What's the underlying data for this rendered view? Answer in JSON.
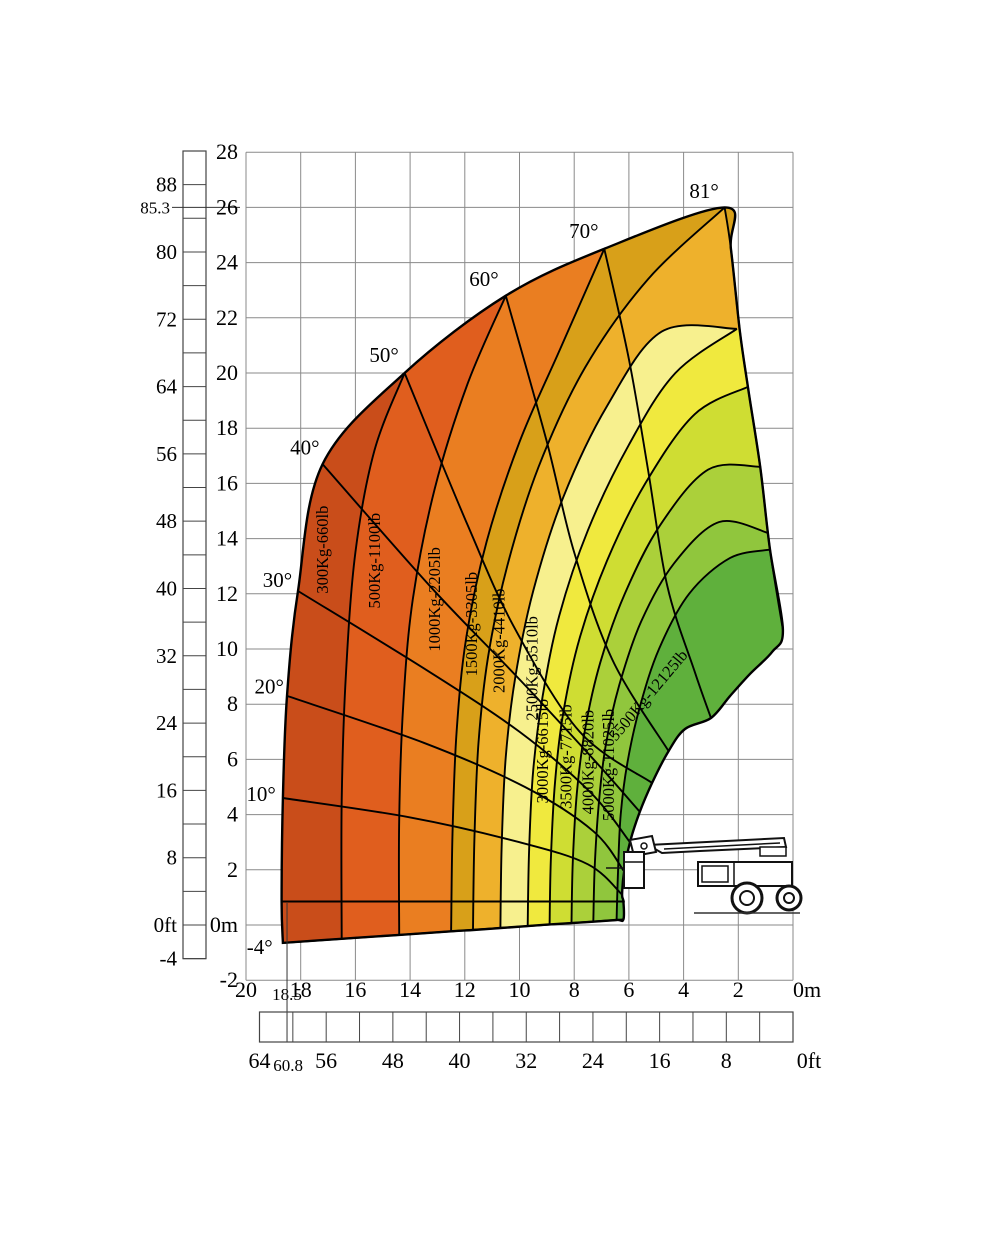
{
  "page": {
    "background": "#ffffff"
  },
  "chart_data": {
    "type": "area",
    "title": "",
    "description": "Aerial platform / crane working range and load capacity chart. Horizontal axis: outreach (m top scale, ft bottom scale, zero at right). Vertical axis: height (m inner scale, ft outer ruler). Fan-shaped envelope divided into capacity zones by boom angle lines.",
    "grid": {
      "on": true,
      "step_m": 2,
      "x_range_m": [
        0,
        20
      ],
      "y_range_m": [
        -2,
        28
      ]
    },
    "axes": {
      "y_m": {
        "ticks": [
          {
            "v": 28,
            "label": "28"
          },
          {
            "v": 26,
            "label": "26"
          },
          {
            "v": 24,
            "label": "24"
          },
          {
            "v": 22,
            "label": "22"
          },
          {
            "v": 20,
            "label": "20"
          },
          {
            "v": 18,
            "label": "18"
          },
          {
            "v": 16,
            "label": "16"
          },
          {
            "v": 14,
            "label": "14"
          },
          {
            "v": 12,
            "label": "12"
          },
          {
            "v": 10,
            "label": "10"
          },
          {
            "v": 8,
            "label": "8"
          },
          {
            "v": 6,
            "label": "6"
          },
          {
            "v": 4,
            "label": "4"
          },
          {
            "v": 2,
            "label": "2"
          },
          {
            "v": 0,
            "label": "0m"
          },
          {
            "v": -2,
            "label": "-2"
          }
        ]
      },
      "y_ft": {
        "ticks": [
          {
            "v": 88,
            "label": "88"
          },
          {
            "v": 80,
            "label": "80"
          },
          {
            "v": 72,
            "label": "72"
          },
          {
            "v": 64,
            "label": "64"
          },
          {
            "v": 56,
            "label": "56"
          },
          {
            "v": 48,
            "label": "48"
          },
          {
            "v": 40,
            "label": "40"
          },
          {
            "v": 32,
            "label": "32"
          },
          {
            "v": 24,
            "label": "24"
          },
          {
            "v": 16,
            "label": "16"
          },
          {
            "v": 8,
            "label": "8"
          },
          {
            "v": 0,
            "label": "0ft"
          },
          {
            "v": -4,
            "label": "-4"
          }
        ],
        "special": {
          "v": 85.3,
          "label": "85.3"
        }
      },
      "x_m": {
        "ticks": [
          {
            "v": 20,
            "label": "20"
          },
          {
            "v": 18,
            "label": "18"
          },
          {
            "v": 16,
            "label": "16"
          },
          {
            "v": 14,
            "label": "14"
          },
          {
            "v": 12,
            "label": "12"
          },
          {
            "v": 10,
            "label": "10"
          },
          {
            "v": 8,
            "label": "8"
          },
          {
            "v": 6,
            "label": "6"
          },
          {
            "v": 4,
            "label": "4"
          },
          {
            "v": 2,
            "label": "2"
          },
          {
            "v": 0,
            "label": "0m"
          }
        ],
        "special": {
          "v": 18.5,
          "label": "18.5"
        }
      },
      "x_ft": {
        "ticks": [
          {
            "v": 64,
            "label": "64"
          },
          {
            "v": 56,
            "label": "56"
          },
          {
            "v": 48,
            "label": "48"
          },
          {
            "v": 40,
            "label": "40"
          },
          {
            "v": 32,
            "label": "32"
          },
          {
            "v": 24,
            "label": "24"
          },
          {
            "v": 16,
            "label": "16"
          },
          {
            "v": 8,
            "label": "8"
          },
          {
            "v": 0,
            "label": "0ft"
          }
        ],
        "special": {
          "v": 60.8,
          "label": "60.8"
        }
      }
    },
    "markers": {
      "max_height_ft": "85.3",
      "max_reach_m": "18.5",
      "max_reach_ft": "60.8"
    },
    "envelope": {
      "outer": [
        [
          18.65,
          -0.65
        ],
        [
          18.7,
          0.85
        ],
        [
          18.65,
          4.6
        ],
        [
          18.5,
          8.3
        ],
        [
          18.1,
          12.1
        ],
        [
          17.2,
          16.7
        ],
        [
          14.2,
          20.0
        ],
        [
          10.5,
          22.8
        ],
        [
          6.9,
          24.5
        ],
        [
          2.5,
          26.0
        ]
      ],
      "right_edge": [
        [
          2.27,
          24.5
        ],
        [
          1.94,
          21.5
        ],
        [
          1.65,
          19.5
        ],
        [
          1.2,
          16.6
        ],
        [
          0.84,
          13.6
        ],
        [
          0.37,
          10.7
        ]
      ],
      "inner_arc": [
        [
          0.76,
          9.9
        ],
        [
          1.57,
          9.1
        ],
        [
          2.3,
          8.3
        ],
        [
          3.0,
          7.5
        ],
        [
          3.95,
          7.1
        ],
        [
          4.55,
          6.3
        ],
        [
          5.15,
          5.15
        ],
        [
          5.6,
          4.1
        ],
        [
          5.96,
          3.0
        ],
        [
          6.18,
          1.9
        ],
        [
          6.25,
          1.1
        ],
        [
          6.2,
          0.85
        ],
        [
          6.2,
          0.2
        ]
      ],
      "bottom_edge": [
        [
          6.45,
          0.18
        ],
        [
          7.3,
          0.12
        ],
        [
          8.1,
          0.07
        ],
        [
          8.9,
          0.02
        ],
        [
          9.7,
          -0.04
        ],
        [
          10.7,
          -0.11
        ],
        [
          11.7,
          -0.18
        ],
        [
          12.5,
          -0.23
        ],
        [
          14.4,
          -0.36
        ],
        [
          16.5,
          -0.5
        ]
      ]
    },
    "angle_lines": [
      {
        "label": "-4°",
        "points": [
          [
            18.65,
            -0.65
          ],
          [
            6.2,
            0.2
          ]
        ],
        "label_pos": [
          19.5,
          -0.8
        ]
      },
      {
        "label": "",
        "points": [
          [
            18.7,
            0.85
          ],
          [
            6.15,
            0.85
          ]
        ],
        "label_pos": null
      },
      {
        "label": "10°",
        "points": [
          [
            18.65,
            4.6
          ],
          [
            14.0,
            3.9
          ],
          [
            10.0,
            3.0
          ],
          [
            7.5,
            2.2
          ],
          [
            6.25,
            1.1
          ]
        ],
        "label_pos": [
          19.45,
          4.75
        ]
      },
      {
        "label": "20°",
        "points": [
          [
            18.5,
            8.3
          ],
          [
            13.5,
            6.6
          ],
          [
            9.8,
            5.0
          ],
          [
            7.3,
            3.4
          ],
          [
            6.18,
            1.95
          ]
        ],
        "label_pos": [
          19.15,
          8.65
        ]
      },
      {
        "label": "30°",
        "points": [
          [
            18.1,
            12.1
          ],
          [
            13.5,
            9.3
          ],
          [
            10.0,
            7.0
          ],
          [
            7.4,
            4.8
          ],
          [
            5.96,
            3.0
          ]
        ],
        "label_pos": [
          18.85,
          12.5
        ]
      },
      {
        "label": "40°",
        "points": [
          [
            17.2,
            16.7
          ],
          [
            13.2,
            12.2
          ],
          [
            10.0,
            8.9
          ],
          [
            7.2,
            5.9
          ],
          [
            5.6,
            4.1
          ]
        ],
        "label_pos": [
          17.85,
          17.3
        ]
      },
      {
        "label": "50°",
        "points": [
          [
            14.2,
            20.0
          ],
          [
            11.9,
            14.5
          ],
          [
            10.2,
            10.8
          ],
          [
            7.8,
            7.0
          ],
          [
            5.15,
            5.15
          ]
        ],
        "label_pos": [
          14.95,
          20.65
        ]
      },
      {
        "label": "60°",
        "points": [
          [
            10.5,
            22.8
          ],
          [
            9.0,
            17.5
          ],
          [
            8.0,
            13.5
          ],
          [
            6.6,
            9.6
          ],
          [
            4.55,
            6.3
          ]
        ],
        "label_pos": [
          11.3,
          23.4
        ]
      },
      {
        "label": "70°",
        "points": [
          [
            6.9,
            24.5
          ],
          [
            6.0,
            20.5
          ],
          [
            5.3,
            16.5
          ],
          [
            4.6,
            12.3
          ],
          [
            3.6,
            9.2
          ],
          [
            3.0,
            7.5
          ]
        ],
        "label_pos": [
          7.65,
          25.15
        ]
      },
      {
        "label": "81°",
        "points": [
          [
            2.5,
            26.0
          ],
          [
            2.27,
            24.5
          ],
          [
            1.94,
            21.5
          ],
          [
            1.65,
            19.5
          ],
          [
            1.2,
            16.6
          ],
          [
            0.84,
            13.6
          ],
          [
            0.37,
            10.7
          ]
        ],
        "label_pos": [
          3.25,
          26.6
        ]
      }
    ],
    "zones": [
      {
        "label": "300Kg-660lb",
        "color": "#c94d1a",
        "label_pos": [
          17.0,
          13.6
        ],
        "label_rot": -90,
        "boundary": null
      },
      {
        "label": "500Kg-1100lb",
        "color": "#e05e1e",
        "label_pos": [
          15.1,
          13.2
        ],
        "label_rot": -90,
        "boundary": [
          [
            16.5,
            -0.5
          ],
          [
            16.5,
            4.5
          ],
          [
            16.35,
            9.0
          ],
          [
            16.0,
            13.5
          ],
          [
            15.3,
            17.2
          ],
          [
            14.2,
            20.0
          ]
        ]
      },
      {
        "label": "1000Kg-2205lb",
        "color": "#ea7e21",
        "label_pos": [
          12.9,
          11.8
        ],
        "label_rot": -90,
        "boundary": [
          [
            14.4,
            -0.36
          ],
          [
            14.4,
            3.8
          ],
          [
            14.25,
            8.0
          ],
          [
            13.9,
            11.8
          ],
          [
            13.1,
            15.8
          ],
          [
            11.9,
            19.6
          ],
          [
            10.5,
            22.8
          ]
        ]
      },
      {
        "label": "1500Kg-3305lb",
        "color": "#d8a019",
        "label_pos": [
          11.55,
          10.9
        ],
        "label_rot": -90,
        "boundary": [
          [
            12.5,
            -0.23
          ],
          [
            12.45,
            3.3
          ],
          [
            12.3,
            7.0
          ],
          [
            11.95,
            10.4
          ],
          [
            11.2,
            13.9
          ],
          [
            10.0,
            17.5
          ],
          [
            8.5,
            20.9
          ],
          [
            6.9,
            24.5
          ]
        ]
      },
      {
        "label": "2000Kg-4410lb",
        "color": "#eeb12c",
        "label_pos": [
          10.55,
          10.3
        ],
        "label_rot": -90,
        "boundary": [
          [
            11.7,
            -0.18
          ],
          [
            11.65,
            3.1
          ],
          [
            11.5,
            6.6
          ],
          [
            11.15,
            9.7
          ],
          [
            10.45,
            13.0
          ],
          [
            9.3,
            16.6
          ],
          [
            7.6,
            20.2
          ],
          [
            5.3,
            23.4
          ],
          [
            2.5,
            26.0
          ]
        ]
      },
      {
        "label": "2500Kg-5510lb",
        "color": "#f7f08e",
        "label_pos": [
          9.35,
          9.3
        ],
        "label_rot": -90,
        "boundary": [
          [
            10.7,
            -0.11
          ],
          [
            10.65,
            2.9
          ],
          [
            10.5,
            6.1
          ],
          [
            10.15,
            9.0
          ],
          [
            9.5,
            12.1
          ],
          [
            8.4,
            15.5
          ],
          [
            6.8,
            18.8
          ],
          [
            4.8,
            21.5
          ],
          [
            2.05,
            21.6
          ]
        ]
      },
      {
        "label": "3000Kg-6615lb",
        "color": "#f0e93e",
        "label_pos": [
          8.95,
          6.3
        ],
        "label_rot": -90,
        "boundary": [
          [
            9.7,
            -0.04
          ],
          [
            9.65,
            2.7
          ],
          [
            9.5,
            5.6
          ],
          [
            9.15,
            8.3
          ],
          [
            8.55,
            11.2
          ],
          [
            7.5,
            14.3
          ],
          [
            6.0,
            17.4
          ],
          [
            4.3,
            20.0
          ],
          [
            2.05,
            21.6
          ]
        ]
      },
      {
        "label": "3500Kg-7715lb",
        "color": "#cfdd33",
        "label_pos": [
          8.1,
          6.1
        ],
        "label_rot": -90,
        "boundary": [
          [
            8.9,
            0.02
          ],
          [
            8.85,
            2.5
          ],
          [
            8.7,
            5.2
          ],
          [
            8.4,
            7.7
          ],
          [
            7.8,
            10.4
          ],
          [
            6.8,
            13.2
          ],
          [
            5.4,
            16.0
          ],
          [
            3.6,
            18.5
          ],
          [
            1.65,
            19.5
          ]
        ]
      },
      {
        "label": "4000Kg-8820lb",
        "color": "#abd03a",
        "label_pos": [
          7.3,
          5.9
        ],
        "label_rot": -90,
        "boundary": [
          [
            8.1,
            0.07
          ],
          [
            8.05,
            2.3
          ],
          [
            7.9,
            4.8
          ],
          [
            7.6,
            7.1
          ],
          [
            7.05,
            9.5
          ],
          [
            6.15,
            12.0
          ],
          [
            4.85,
            14.5
          ],
          [
            3.1,
            16.5
          ],
          [
            1.2,
            16.6
          ]
        ]
      },
      {
        "label": "5000Kg-11025lb",
        "color": "#90c63d",
        "label_pos": [
          6.55,
          5.8
        ],
        "label_rot": -90,
        "boundary": [
          [
            7.3,
            0.12
          ],
          [
            7.25,
            2.1
          ],
          [
            7.1,
            4.4
          ],
          [
            6.85,
            6.5
          ],
          [
            6.35,
            8.7
          ],
          [
            5.55,
            11.0
          ],
          [
            4.35,
            13.1
          ],
          [
            2.7,
            14.6
          ],
          [
            0.9,
            14.2
          ]
        ]
      },
      {
        "label": "5500Kg-12125lb",
        "color": "#5fb03c",
        "label_pos": [
          5.15,
          8.2
        ],
        "label_rot": -50,
        "boundary": [
          [
            6.45,
            0.18
          ],
          [
            6.4,
            1.9
          ],
          [
            6.3,
            4.0
          ],
          [
            6.05,
            5.9
          ],
          [
            5.6,
            7.9
          ],
          [
            4.9,
            10.0
          ],
          [
            3.8,
            12.0
          ],
          [
            2.3,
            13.3
          ],
          [
            0.84,
            13.6
          ]
        ]
      }
    ],
    "truck_illustration": "truck-mounted-platform-with-folded-boom"
  }
}
